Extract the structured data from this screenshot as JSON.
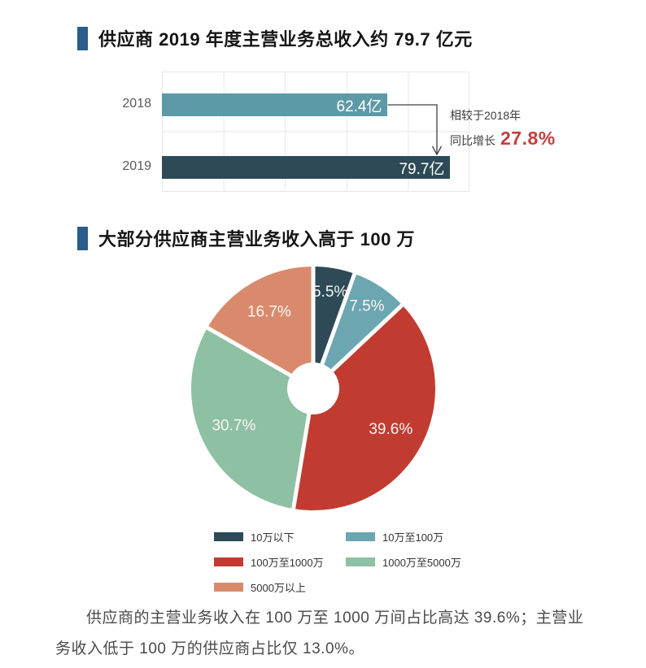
{
  "page": {
    "background": "#ffffff",
    "title_bullet_color": "#2a5d8c"
  },
  "sections": {
    "bar_section": {
      "title": "供应商 2019 年度主营业务总收入约 79.7 亿元",
      "annotation": {
        "line1": "相较于2018年",
        "line2_prefix": "同比增长",
        "growth_value": "27.8%",
        "growth_color": "#c2403f"
      }
    },
    "pie_section": {
      "title": "大部分供应商主营业务收入高于 100 万"
    }
  },
  "chart_data": [
    {
      "type": "bar",
      "title": "供应商 2019 年度主营业务总收入约 79.7 亿元",
      "orientation": "horizontal",
      "categories": [
        "2018",
        "2019"
      ],
      "values": [
        62.4,
        79.7
      ],
      "unit": "亿",
      "value_labels": [
        "62.4亿",
        "79.7亿"
      ],
      "bar_colors": [
        "#5d99a6",
        "#2d4a56"
      ],
      "xlim": [
        0,
        85
      ],
      "grid": true,
      "annotation": "相较于2018年 同比增长 27.8%"
    },
    {
      "type": "pie",
      "title": "大部分供应商主营业务收入高于 100 万",
      "labels": [
        "10万以下",
        "10万至100万",
        "100万至1000万",
        "1000万至5000万",
        "5000万以上"
      ],
      "values": [
        5.5,
        7.5,
        39.6,
        30.7,
        16.7
      ],
      "value_labels": [
        "5.5%",
        "7.5%",
        "39.6%",
        "30.7%",
        "16.7%"
      ],
      "colors": [
        "#2d4a56",
        "#6ba6b1",
        "#c23b31",
        "#8ec0a3",
        "#d98a6d"
      ],
      "donut_hole_ratio": 0.21,
      "start_angle_deg": 0,
      "direction": "clockwise",
      "legend_position": "bottom"
    }
  ],
  "footer": {
    "text": "供应商的主营业务收入在 100 万至 1000 万间占比高达 39.6%；主营业务收入低于 100 万的供应商占比仅 13.0%。"
  }
}
